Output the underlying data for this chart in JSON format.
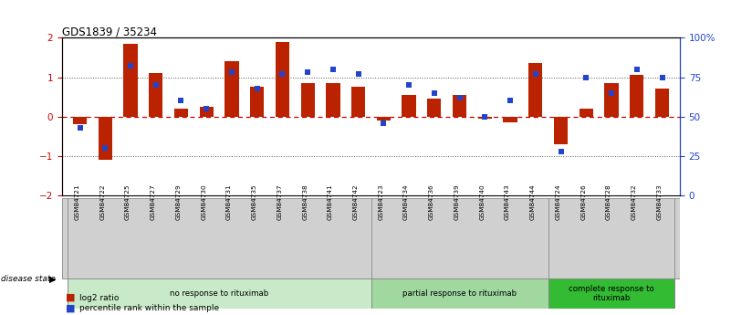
{
  "title": "GDS1839 / 35234",
  "samples": [
    "GSM84721",
    "GSM84722",
    "GSM84725",
    "GSM84727",
    "GSM84729",
    "GSM84730",
    "GSM84731",
    "GSM84735",
    "GSM84737",
    "GSM84738",
    "GSM84741",
    "GSM84742",
    "GSM84723",
    "GSM84734",
    "GSM84736",
    "GSM84739",
    "GSM84740",
    "GSM84743",
    "GSM84744",
    "GSM84724",
    "GSM84726",
    "GSM84728",
    "GSM84732",
    "GSM84733"
  ],
  "log2_ratio": [
    -0.2,
    -1.1,
    1.85,
    1.1,
    0.2,
    0.25,
    1.4,
    0.75,
    1.9,
    0.85,
    0.85,
    0.75,
    -0.1,
    0.55,
    0.45,
    0.55,
    -0.05,
    -0.15,
    1.35,
    -0.7,
    0.2,
    0.85,
    1.05,
    0.7
  ],
  "percentile": [
    43,
    30,
    82,
    70,
    60,
    55,
    78,
    68,
    77,
    78,
    80,
    77,
    46,
    70,
    65,
    62,
    50,
    60,
    77,
    28,
    75,
    65,
    80,
    75
  ],
  "groups": [
    {
      "label": "no response to rituximab",
      "start": 0,
      "end": 12,
      "color": "#c8eac8"
    },
    {
      "label": "partial response to rituximab",
      "start": 12,
      "end": 19,
      "color": "#a0d8a0"
    },
    {
      "label": "complete response to\nrituximab",
      "start": 19,
      "end": 24,
      "color": "#33bb33"
    }
  ],
  "bar_color": "#bb2200",
  "marker_color": "#2244cc",
  "ylim_left": [
    -2,
    2
  ],
  "ylim_right": [
    0,
    100
  ],
  "yticks_left": [
    -2,
    -1,
    0,
    1,
    2
  ],
  "yticks_right": [
    0,
    25,
    50,
    75,
    100
  ],
  "hline_red_color": "#cc0000",
  "hline_dot_color": "#333333",
  "bg_sample_color": "#d0d0d0"
}
